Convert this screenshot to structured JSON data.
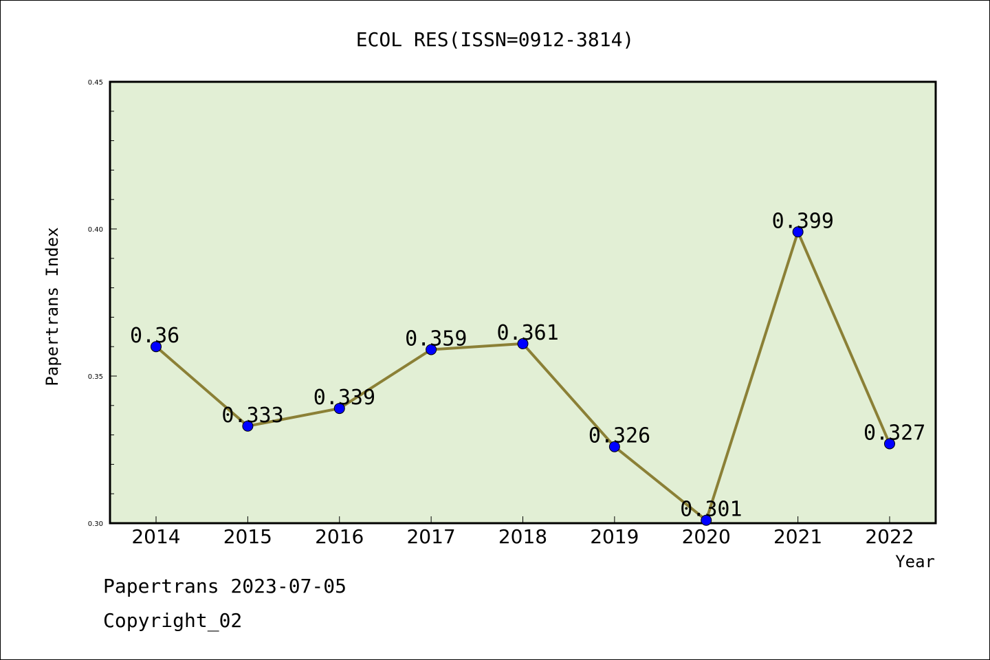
{
  "chart_data": {
    "type": "line",
    "title": "ECOL RES(ISSN=0912-3814)",
    "xlabel": "Year",
    "ylabel": "Papertrans Index",
    "categories": [
      "2014",
      "2015",
      "2016",
      "2017",
      "2018",
      "2019",
      "2020",
      "2021",
      "2022"
    ],
    "values": [
      0.36,
      0.333,
      0.339,
      0.359,
      0.361,
      0.326,
      0.301,
      0.399,
      0.327
    ],
    "value_labels": [
      "0.36",
      "0.333",
      "0.339",
      "0.359",
      "0.361",
      "0.326",
      "0.301",
      "0.399",
      "0.327"
    ],
    "ylim": [
      0.3,
      0.45
    ],
    "yticks": [
      0.3,
      0.35,
      0.4,
      0.45
    ],
    "ytick_labels": [
      "0.30",
      "0.35",
      "0.40",
      "0.45"
    ],
    "grid": false,
    "colors": {
      "plot_background": "#e2efd5",
      "line": "#8b8036",
      "marker": "#0000ff"
    }
  },
  "footer": {
    "date_line": "Papertrans 2023-07-05",
    "copyright": "Copyright_02"
  }
}
